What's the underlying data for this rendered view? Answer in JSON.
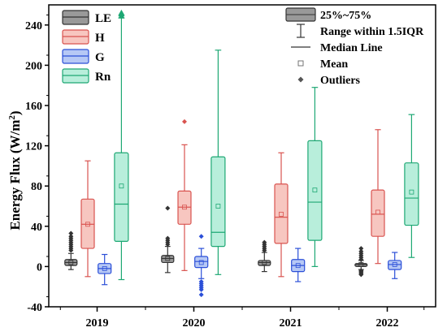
{
  "chart_data": {
    "type": "box",
    "ylabel": "Energy Flux (W/m²)",
    "ylabel_parts": {
      "main": "Energy Flux (W/m",
      "sup": "2",
      "close": ")"
    },
    "ylim": [
      -40,
      260
    ],
    "yticks": [
      -40,
      0,
      40,
      80,
      120,
      160,
      200,
      240
    ],
    "grid": false,
    "categories": [
      "2019",
      "2020",
      "2021",
      "2022"
    ],
    "series": [
      {
        "name": "LE",
        "fill": "#999999",
        "stroke": "#333333",
        "outlier_shape": "diamond",
        "boxes": [
          {
            "whisker_low": -3,
            "q1": 1,
            "median": 4,
            "q3": 7,
            "whisker_high": 13,
            "mean": 4,
            "outliers": [
              16,
              18,
              20,
              22,
              24,
              26,
              28,
              30,
              33
            ]
          },
          {
            "whisker_low": -6,
            "q1": 4,
            "median": 8,
            "q3": 11,
            "whisker_high": 20,
            "mean": 8,
            "outliers": [
              22,
              24,
              26,
              28,
              58
            ]
          },
          {
            "whisker_low": -5,
            "q1": 1,
            "median": 4,
            "q3": 6,
            "whisker_high": 14,
            "mean": 4,
            "outliers": [
              16,
              18,
              20,
              22,
              24
            ]
          },
          {
            "whisker_low": -3,
            "q1": 0,
            "median": 2,
            "q3": 3,
            "whisker_high": 6,
            "mean": 2,
            "outliers": [
              7,
              9,
              11,
              13,
              15,
              18,
              -4,
              -5,
              -6,
              -7,
              -8
            ]
          }
        ]
      },
      {
        "name": "H",
        "fill": "#f7c6c0",
        "stroke": "#d9534f",
        "outlier_shape": "diamond",
        "boxes": [
          {
            "whisker_low": -10,
            "q1": 18,
            "median": 42,
            "q3": 67,
            "whisker_high": 105,
            "mean": 42,
            "outliers": []
          },
          {
            "whisker_low": -4,
            "q1": 42,
            "median": 59,
            "q3": 75,
            "whisker_high": 121,
            "mean": 59,
            "outliers": [
              144
            ]
          },
          {
            "whisker_low": -10,
            "q1": 23,
            "median": 49,
            "q3": 82,
            "whisker_high": 113,
            "mean": 52,
            "outliers": []
          },
          {
            "whisker_low": 3,
            "q1": 30,
            "median": 52,
            "q3": 76,
            "whisker_high": 136,
            "mean": 54,
            "outliers": []
          }
        ]
      },
      {
        "name": "G",
        "fill": "#b6c8f5",
        "stroke": "#2b4fd8",
        "outlier_shape": "diamond",
        "boxes": [
          {
            "whisker_low": -18,
            "q1": -7,
            "median": -2,
            "q3": 3,
            "whisker_high": 12,
            "mean": -2,
            "outliers": []
          },
          {
            "whisker_low": -12,
            "q1": -1,
            "median": 5,
            "q3": 10,
            "whisker_high": 18,
            "mean": 4,
            "outliers": [
              -15,
              -17,
              -19,
              -21,
              -23,
              -28,
              30
            ]
          },
          {
            "whisker_low": -15,
            "q1": -5,
            "median": 1,
            "q3": 7,
            "whisker_high": 18,
            "mean": 1,
            "outliers": []
          },
          {
            "whisker_low": -12,
            "q1": -3,
            "median": 2,
            "q3": 6,
            "whisker_high": 14,
            "mean": 2,
            "outliers": []
          }
        ]
      },
      {
        "name": "Rn",
        "fill": "#b8eedb",
        "stroke": "#1ea874",
        "outlier_shape": "diamond",
        "boxes": [
          {
            "whisker_low": -13,
            "q1": 25,
            "median": 62,
            "q3": 113,
            "whisker_high": 247,
            "mean": 80,
            "outliers": [
              249,
              251,
              252
            ]
          },
          {
            "whisker_low": -8,
            "q1": 20,
            "median": 34,
            "q3": 109,
            "whisker_high": 215,
            "mean": 60,
            "outliers": []
          },
          {
            "whisker_low": 0,
            "q1": 26,
            "median": 64,
            "q3": 125,
            "whisker_high": 178,
            "mean": 76,
            "outliers": []
          },
          {
            "whisker_low": 9,
            "q1": 41,
            "median": 68,
            "q3": 103,
            "whisker_high": 151,
            "mean": 74,
            "outliers": []
          }
        ]
      }
    ],
    "legend_series": {
      "position": "top-left",
      "items": [
        "LE",
        "H",
        "G",
        "Rn"
      ]
    },
    "legend_key": {
      "position": "top-right",
      "items": [
        {
          "symbol": "box",
          "label": "25%~75%"
        },
        {
          "symbol": "whisker",
          "label": "Range within 1.5IQR"
        },
        {
          "symbol": "line",
          "label": "Median Line"
        },
        {
          "symbol": "square",
          "label": "Mean"
        },
        {
          "symbol": "diamond",
          "label": "Outliers"
        }
      ]
    }
  }
}
